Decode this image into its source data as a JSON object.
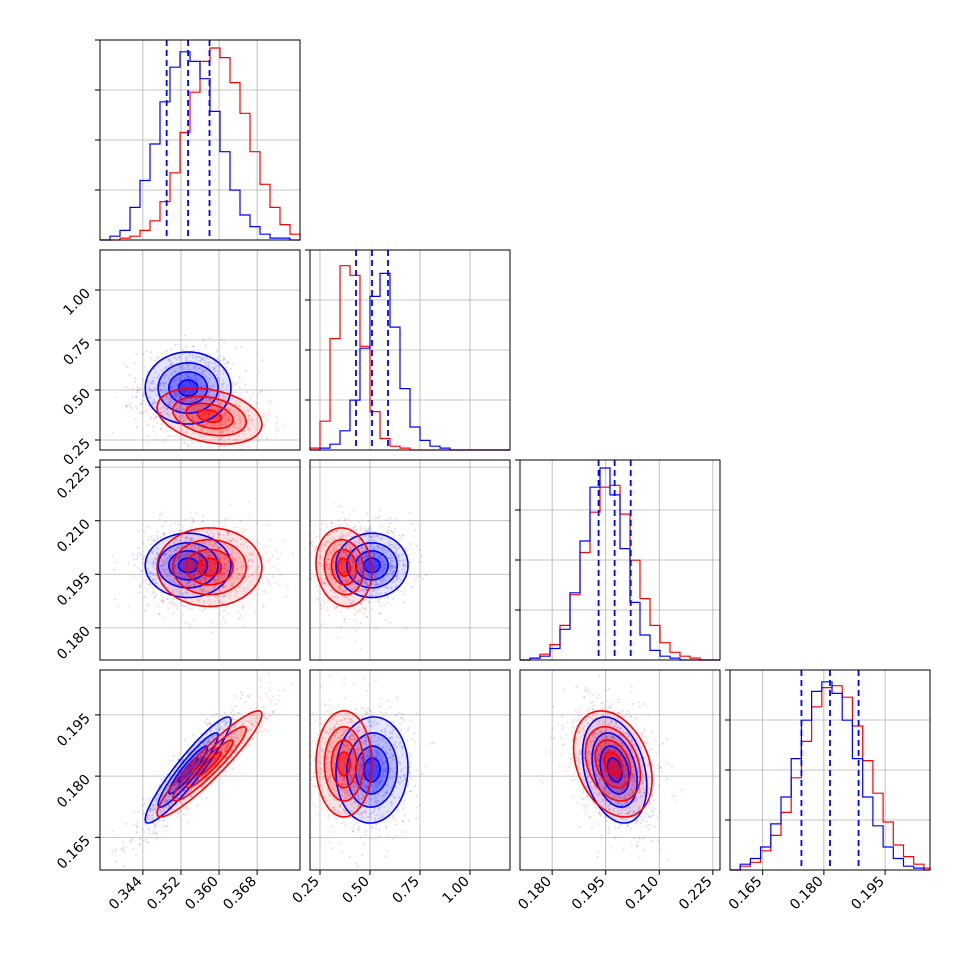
{
  "chart_data": {
    "type": "corner-plot",
    "colors": {
      "series_a": "#0000ff",
      "series_b": "#ff0000",
      "quantile_line": "#0000ff",
      "grid": "#b0b0b0"
    },
    "grid": true,
    "parameters": [
      {
        "range": [
          0.335,
          0.377
        ],
        "ticks": [
          0.344,
          0.352,
          0.36,
          0.368
        ],
        "tick_labels": [
          "0.344",
          "0.352",
          "0.360",
          "0.368"
        ]
      },
      {
        "range": [
          0.2,
          1.2
        ],
        "ticks": [
          0.25,
          0.5,
          0.75,
          1.0
        ],
        "tick_labels": [
          "0.25",
          "0.50",
          "0.75",
          "1.00"
        ]
      },
      {
        "range": [
          0.171,
          0.227
        ],
        "ticks": [
          0.18,
          0.195,
          0.21,
          0.225
        ],
        "tick_labels": [
          "0.180",
          "0.195",
          "0.210",
          "0.225"
        ]
      },
      {
        "range": [
          0.157,
          0.206
        ],
        "ticks": [
          0.165,
          0.18,
          0.195
        ],
        "tick_labels": [
          "0.165",
          "0.180",
          "0.195"
        ]
      }
    ],
    "series": [
      {
        "color": "#0000ff",
        "mean": [
          0.3535,
          0.51,
          0.1975,
          0.1815
        ],
        "sd": [
          0.0045,
          0.09,
          0.0045,
          0.0065
        ],
        "corr": {
          "0-1": 0.0,
          "0-2": 0.0,
          "0-3": 0.93,
          "1-2": 0.0,
          "1-3": 0.05,
          "2-3": -0.3
        }
      },
      {
        "color": "#ff0000",
        "mean": [
          0.358,
          0.37,
          0.197,
          0.183
        ],
        "sd": [
          0.0055,
          0.07,
          0.0055,
          0.0065
        ],
        "corr": {
          "0-1": -0.3,
          "0-2": 0.0,
          "0-3": 0.93,
          "1-2": -0.1,
          "1-3": 0.0,
          "2-3": -0.3
        }
      }
    ],
    "quantiles": [
      [
        0.349,
        0.3535,
        0.358
      ],
      [
        0.43,
        0.51,
        0.59
      ],
      [
        0.193,
        0.1975,
        0.202
      ],
      [
        0.1745,
        0.1815,
        0.1885
      ]
    ],
    "histograms": [
      {
        "edges": [
          0.335,
          0.3371,
          0.3392,
          0.3413,
          0.3434,
          0.3455,
          0.3476,
          0.3497,
          0.3518,
          0.3539,
          0.356,
          0.3581,
          0.3602,
          0.3623,
          0.3644,
          0.3665,
          0.3686,
          0.3707,
          0.3728,
          0.3749,
          0.377
        ],
        "series_a": [
          0,
          2,
          5,
          17,
          31,
          50,
          72,
          90,
          98,
          93,
          84,
          67,
          46,
          26,
          13,
          7,
          3,
          1,
          1,
          0
        ],
        "series_b": [
          0,
          0,
          1,
          2,
          5,
          10,
          20,
          35,
          56,
          77,
          93,
          100,
          95,
          82,
          66,
          46,
          29,
          17,
          8,
          3
        ]
      },
      {
        "edges": [
          0.2,
          0.25,
          0.3,
          0.35,
          0.4,
          0.45,
          0.5,
          0.55,
          0.6,
          0.65,
          0.7,
          0.75,
          0.8,
          0.85,
          0.9,
          0.95,
          1.0,
          1.05,
          1.1,
          1.15,
          1.2
        ],
        "series_a": [
          0,
          1,
          3,
          10,
          26,
          53,
          80,
          92,
          64,
          32,
          12,
          5,
          2,
          1,
          0,
          0,
          0,
          0,
          0,
          0
        ],
        "series_b": [
          1,
          15,
          58,
          96,
          91,
          54,
          20,
          6,
          2,
          1,
          0,
          0,
          0,
          0,
          0,
          0,
          0,
          0,
          0,
          0
        ]
      },
      {
        "edges": [
          0.171,
          0.1738,
          0.1766,
          0.1794,
          0.1822,
          0.185,
          0.1878,
          0.1906,
          0.1934,
          0.1962,
          0.199,
          0.2018,
          0.2046,
          0.2074,
          0.2102,
          0.213,
          0.2158,
          0.2186,
          0.2214,
          0.2242,
          0.227
        ],
        "series_a": [
          0,
          1,
          2,
          6,
          16,
          35,
          62,
          90,
          100,
          86,
          58,
          30,
          13,
          5,
          2,
          1,
          0,
          0,
          0,
          0
        ],
        "series_b": [
          0,
          1,
          3,
          8,
          18,
          34,
          56,
          77,
          90,
          91,
          76,
          52,
          32,
          18,
          9,
          4,
          2,
          1,
          0,
          0
        ]
      },
      {
        "edges": [
          0.157,
          0.1595,
          0.162,
          0.1645,
          0.167,
          0.1695,
          0.172,
          0.1745,
          0.177,
          0.1795,
          0.182,
          0.1845,
          0.187,
          0.1895,
          0.192,
          0.1945,
          0.197,
          0.1995,
          0.202,
          0.2045,
          0.206
        ],
        "series_a": [
          0,
          3,
          6,
          12,
          24,
          38,
          58,
          78,
          93,
          98,
          92,
          78,
          58,
          38,
          23,
          12,
          6,
          2,
          1,
          0
        ],
        "series_b": [
          0,
          2,
          4,
          10,
          18,
          30,
          48,
          67,
          85,
          95,
          96,
          90,
          75,
          57,
          40,
          25,
          13,
          7,
          3,
          1
        ]
      }
    ]
  }
}
